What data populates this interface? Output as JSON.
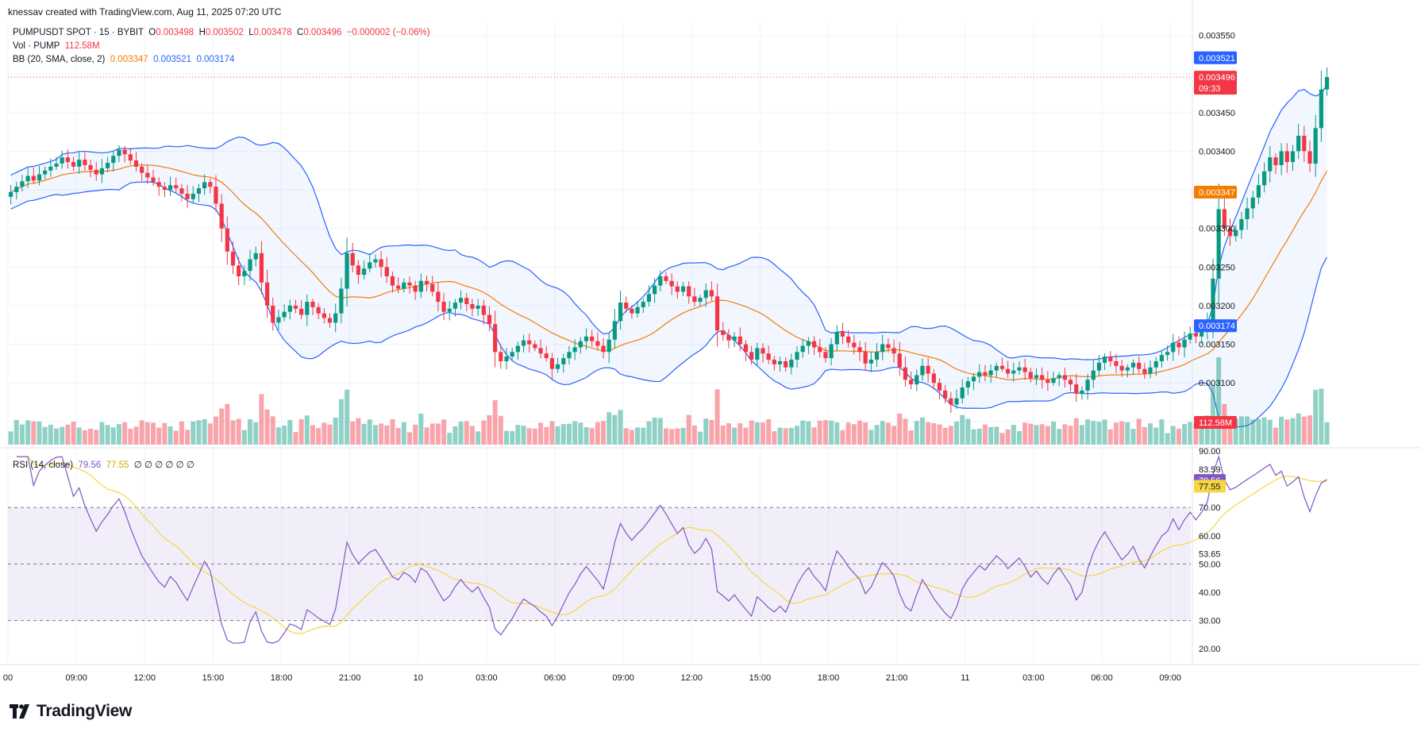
{
  "attribution": "knessav created with TradingView.com, Aug 11, 2025 07:20 UTC",
  "brand": {
    "name": "TradingView",
    "logo_icon": "tradingview-logo-icon"
  },
  "legend": {
    "symbol": "PUMPUSDT SPOT · 15 · BYBIT",
    "open_label": "O",
    "open": "0.003498",
    "high_label": "H",
    "high": "0.003502",
    "low_label": "L",
    "low": "0.003478",
    "close_label": "C",
    "close": "0.003496",
    "change": "−0.000002 (−0.06%)",
    "volume_label": "Vol · PUMP",
    "volume": "112.58M",
    "bb_label": "BB (20, SMA, close, 2)",
    "bb_basis": "0.003347",
    "bb_upper": "0.003521",
    "bb_lower": "0.003174",
    "rsi_label": "RSI (14, close)",
    "rsi": "79.56",
    "rsi_ma": "77.55",
    "rsi_extra": "∅ ∅ ∅ ∅ ∅ ∅"
  },
  "colors": {
    "up": "#089981",
    "down": "#f23645",
    "bb_basis": "#f57c00",
    "bb_band": "#2962ff",
    "rsi": "#7e57c2",
    "rsi_ma": "#f7d640",
    "grid": "#f0f3fa"
  },
  "chart_data": [
    {
      "type": "candlestick",
      "title": "PUMPUSDT SPOT · 15 · BYBIT",
      "ylim": [
        0.00302,
        0.003565
      ],
      "y_ticks": [
        "0.003050",
        "0.003100",
        "0.003150",
        "0.003200",
        "0.003250",
        "0.003300",
        "0.003350",
        "0.003400",
        "0.003450",
        "0.003500",
        "0.003550"
      ],
      "x_ticks": [
        {
          "label": "00",
          "hour": 6
        },
        {
          "label": "09:00",
          "hour": 9
        },
        {
          "label": "12:00",
          "hour": 12
        },
        {
          "label": "15:00",
          "hour": 15
        },
        {
          "label": "18:00",
          "hour": 18
        },
        {
          "label": "21:00",
          "hour": 21
        },
        {
          "label": "10",
          "hour": 24
        },
        {
          "label": "03:00",
          "hour": 27
        },
        {
          "label": "06:00",
          "hour": 30
        },
        {
          "label": "09:00",
          "hour": 33
        },
        {
          "label": "12:00",
          "hour": 36
        },
        {
          "label": "15:00",
          "hour": 39
        },
        {
          "label": "18:00",
          "hour": 42
        },
        {
          "label": "21:00",
          "hour": 45
        },
        {
          "label": "11",
          "hour": 48
        },
        {
          "label": "03:00",
          "hour": 51
        },
        {
          "label": "06:00",
          "hour": 54
        },
        {
          "label": "09:00",
          "hour": 57
        }
      ],
      "x_range_hours": [
        6.0,
        57.9
      ],
      "bar_minutes": 15,
      "first_bar_hour": 6.0,
      "price_labels": [
        {
          "value": "0.003521",
          "price": 0.003521,
          "color": "#2962ff"
        },
        {
          "value": "0.003496",
          "price": 0.003496,
          "color": "#f23645",
          "sub": "09:33"
        },
        {
          "value": "0.003347",
          "price": 0.003347,
          "color": "#f57c00"
        },
        {
          "value": "0.003174",
          "price": 0.003174,
          "color": "#2962ff"
        }
      ],
      "closes": [
        0.003347,
        0.003354,
        0.003361,
        0.003368,
        0.003362,
        0.00337,
        0.003375,
        0.00338,
        0.003384,
        0.003392,
        0.003386,
        0.00338,
        0.003389,
        0.003382,
        0.003376,
        0.00337,
        0.003378,
        0.003385,
        0.003394,
        0.003402,
        0.003396,
        0.003388,
        0.00338,
        0.003372,
        0.003366,
        0.00336,
        0.003354,
        0.00335,
        0.003356,
        0.003352,
        0.003345,
        0.003338,
        0.003345,
        0.003352,
        0.00336,
        0.003354,
        0.003332,
        0.0033,
        0.00327,
        0.003252,
        0.003238,
        0.003245,
        0.00326,
        0.003268,
        0.00323,
        0.0032,
        0.003178,
        0.003185,
        0.003192,
        0.0032,
        0.003196,
        0.003188,
        0.003205,
        0.003198,
        0.00319,
        0.003184,
        0.003178,
        0.00319,
        0.003222,
        0.003268,
        0.003252,
        0.00324,
        0.003248,
        0.003256,
        0.00326,
        0.00325,
        0.003238,
        0.003226,
        0.003222,
        0.00323,
        0.003226,
        0.003218,
        0.003232,
        0.003228,
        0.003218,
        0.003205,
        0.003192,
        0.003196,
        0.003204,
        0.00321,
        0.003202,
        0.003196,
        0.0032,
        0.003188,
        0.003176,
        0.00314,
        0.003128,
        0.003134,
        0.00314,
        0.003148,
        0.003155,
        0.00315,
        0.003145,
        0.003138,
        0.003132,
        0.003118,
        0.003124,
        0.003132,
        0.00314,
        0.003146,
        0.003154,
        0.00316,
        0.003154,
        0.003148,
        0.00314,
        0.003156,
        0.00318,
        0.003204,
        0.003196,
        0.00319,
        0.003198,
        0.003205,
        0.003215,
        0.003226,
        0.003238,
        0.003232,
        0.003225,
        0.003218,
        0.003225,
        0.003212,
        0.003205,
        0.00321,
        0.00322,
        0.003212,
        0.003168,
        0.003162,
        0.003155,
        0.00316,
        0.00315,
        0.00314,
        0.00313,
        0.003145,
        0.003138,
        0.00313,
        0.003124,
        0.003128,
        0.00312,
        0.00313,
        0.00314,
        0.003148,
        0.003154,
        0.003146,
        0.00314,
        0.003132,
        0.00315,
        0.003166,
        0.00316,
        0.003152,
        0.003146,
        0.00314,
        0.003125,
        0.00313,
        0.00314,
        0.00315,
        0.003145,
        0.003138,
        0.00312,
        0.003104,
        0.003098,
        0.00311,
        0.003122,
        0.003112,
        0.0031,
        0.00309,
        0.00308,
        0.003072,
        0.00308,
        0.003094,
        0.003102,
        0.003108,
        0.003114,
        0.00311,
        0.003116,
        0.003122,
        0.003118,
        0.003112,
        0.003116,
        0.00312,
        0.003114,
        0.003106,
        0.00311,
        0.003104,
        0.0031,
        0.003106,
        0.00311,
        0.003104,
        0.003098,
        0.003086,
        0.00309,
        0.003104,
        0.003116,
        0.003126,
        0.003134,
        0.003128,
        0.003122,
        0.003116,
        0.00312,
        0.003126,
        0.003118,
        0.003112,
        0.00312,
        0.003128,
        0.003136,
        0.00314,
        0.003152,
        0.003146,
        0.003156,
        0.003164,
        0.00316,
        0.003168,
        0.00318,
        0.003235,
        0.003325,
        0.0033,
        0.00329,
        0.003298,
        0.003312,
        0.003326,
        0.00334,
        0.003356,
        0.003374,
        0.003392,
        0.003382,
        0.0034,
        0.003386,
        0.0034,
        0.00342,
        0.0034,
        0.003384,
        0.00343,
        0.00348,
        0.003496
      ]
    },
    {
      "type": "bar",
      "title": "Vol · PUMP",
      "last_value": "112.58M",
      "last_label_color": "#f23645"
    },
    {
      "type": "line",
      "title": "RSI (14, close)",
      "ylim": [
        15.0,
        90.0
      ],
      "y_ticks": [
        "20.00",
        "30.00",
        "40.00",
        "50.00",
        "60.00",
        "70.00",
        "90.00"
      ],
      "bands": {
        "upper": 70,
        "middle": 50,
        "lower": 30
      },
      "price_labels": [
        {
          "value": "83.59",
          "v": 83.59,
          "color": "none"
        },
        {
          "value": "79.56",
          "v": 79.56,
          "color": "#7e57c2"
        },
        {
          "value": "77.55",
          "v": 77.55,
          "color": "#f7d640"
        },
        {
          "value": "53.65",
          "v": 53.65,
          "color": "none"
        }
      ]
    }
  ]
}
